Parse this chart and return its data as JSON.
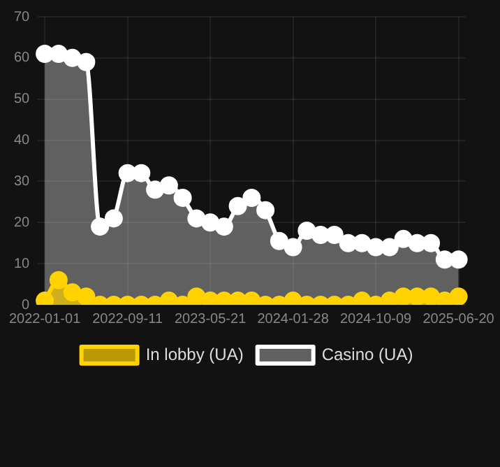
{
  "chart_data": {
    "type": "area",
    "categories": [
      "2022-01-01",
      null,
      null,
      null,
      null,
      null,
      "2022-09-11",
      null,
      null,
      null,
      null,
      null,
      "2023-05-21",
      null,
      null,
      null,
      null,
      null,
      "2024-01-28",
      null,
      null,
      null,
      null,
      null,
      "2024-10-09",
      null,
      null,
      null,
      null,
      null,
      "2025-06-20"
    ],
    "series": [
      {
        "name": "In lobby (UA)",
        "color": "#ffd200",
        "values": [
          1,
          6,
          3,
          2,
          0,
          0,
          0,
          0,
          0,
          1,
          0,
          2,
          1,
          1,
          1,
          1,
          0,
          0,
          1,
          0,
          0,
          0,
          0,
          1,
          0,
          1,
          2,
          2,
          2,
          1,
          2
        ]
      },
      {
        "name": "Casino (UA)",
        "color": "#ffffff",
        "values": [
          61,
          61,
          60,
          59,
          19,
          21,
          32,
          32,
          28,
          29,
          26,
          21,
          20,
          19,
          24,
          26,
          23,
          15.5,
          14,
          18,
          17,
          17,
          15,
          15,
          14,
          14,
          16,
          15,
          15,
          11,
          11
        ]
      }
    ],
    "ylim": [
      0,
      70
    ],
    "yticks": [
      0,
      10,
      20,
      30,
      40,
      50,
      60,
      70
    ],
    "grid": true,
    "legend": "bottom",
    "marker": "circle",
    "line_style": "solid"
  }
}
